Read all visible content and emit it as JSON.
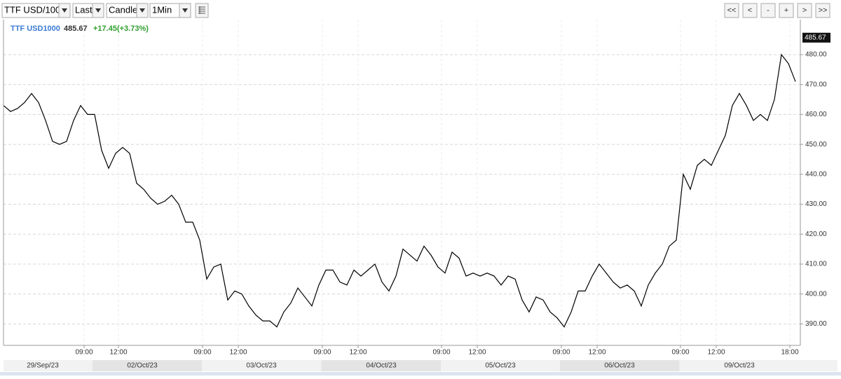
{
  "toolbar": {
    "symbol": "TTF USD/100",
    "field": "Last",
    "style": "Candle",
    "interval": "1Min",
    "nav": [
      "<<",
      "<",
      "-",
      "+",
      ">",
      ">>"
    ]
  },
  "chart_data": {
    "type": "line",
    "series": [
      {
        "name": "TTF USD1000",
        "color": "#000000",
        "values": [
          463,
          461,
          462,
          464,
          467,
          464,
          458,
          451,
          450,
          451,
          458,
          463,
          460,
          460,
          448,
          442,
          447,
          449,
          447,
          437,
          435,
          432,
          430,
          431,
          433,
          430,
          424,
          424,
          418,
          405,
          409,
          410,
          398,
          401,
          400,
          396,
          393,
          391,
          391,
          389,
          394,
          397,
          402,
          399,
          396,
          403,
          408,
          408,
          404,
          403,
          408,
          406,
          408,
          410,
          404,
          401,
          406,
          415,
          413,
          411,
          416,
          413,
          409,
          407,
          414,
          412,
          406,
          407,
          406,
          407,
          406,
          403,
          406,
          405,
          398,
          394,
          399,
          398,
          394,
          392,
          389,
          394,
          401,
          401,
          406,
          410,
          407,
          404,
          402,
          403,
          401,
          396,
          403,
          407,
          410,
          416,
          418,
          440,
          435,
          443,
          445,
          443,
          448,
          453,
          463,
          467,
          463,
          458,
          460,
          458,
          465,
          480,
          477,
          471
        ]
      }
    ],
    "last_price": 485.67,
    "change": "+17.45(+3.73%)",
    "xlim": [
      0,
      113.7
    ],
    "ylim": [
      383.3,
      491.7
    ],
    "yticks": [
      {
        "value": 390,
        "label": "390.00"
      },
      {
        "value": 400,
        "label": "400.00"
      },
      {
        "value": 410,
        "label": "410.00"
      },
      {
        "value": 420,
        "label": "420.00"
      },
      {
        "value": 430,
        "label": "430.00"
      },
      {
        "value": 440,
        "label": "440.00"
      },
      {
        "value": 450,
        "label": "450.00"
      },
      {
        "value": 460,
        "label": "460.00"
      },
      {
        "value": 470,
        "label": "470.00"
      },
      {
        "value": 480,
        "label": "480.00"
      }
    ],
    "xticks": [
      {
        "value": 11.5,
        "label": "09:00"
      },
      {
        "value": 16.4,
        "label": "12:00"
      },
      {
        "value": 28.4,
        "label": "09:00"
      },
      {
        "value": 33.5,
        "label": "12:00"
      },
      {
        "value": 45.5,
        "label": "09:00"
      },
      {
        "value": 50.6,
        "label": "12:00"
      },
      {
        "value": 62.5,
        "label": "09:00"
      },
      {
        "value": 67.6,
        "label": "12:00"
      },
      {
        "value": 79.6,
        "label": "09:00"
      },
      {
        "value": 84.7,
        "label": "12:00"
      },
      {
        "value": 96.6,
        "label": "09:00"
      },
      {
        "value": 101.7,
        "label": "12:00"
      },
      {
        "value": 112.2,
        "label": "18:00"
      }
    ],
    "date_labels": [
      {
        "value": 5.6,
        "label": "29/Sep/23"
      },
      {
        "value": 19.8,
        "label": "02/Oct/23"
      },
      {
        "value": 36.8,
        "label": "03/Oct/23"
      },
      {
        "value": 53.9,
        "label": "04/Oct/23"
      },
      {
        "value": 70.9,
        "label": "05/Oct/23"
      },
      {
        "value": 87.9,
        "label": "06/Oct/23"
      },
      {
        "value": 105,
        "label": "09/Oct/23"
      }
    ],
    "grid": true
  }
}
